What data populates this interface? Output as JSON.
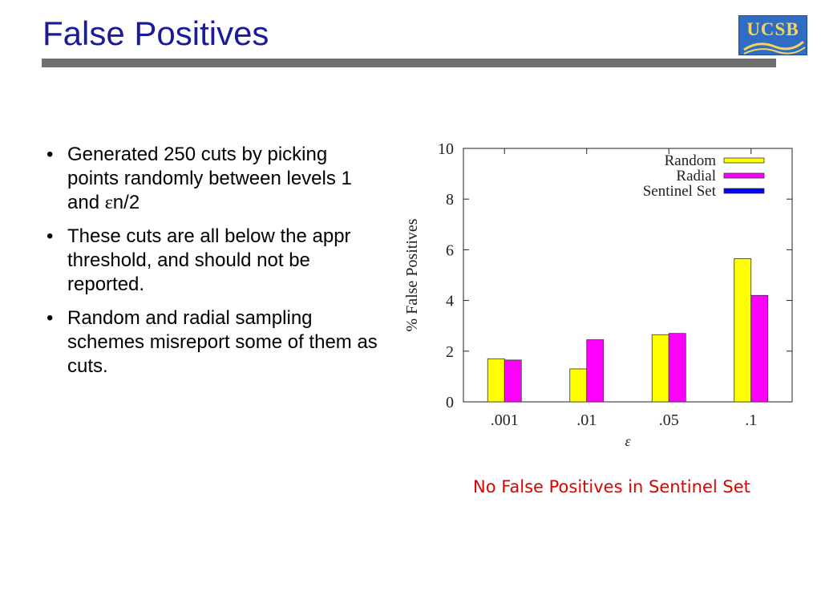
{
  "slide": {
    "title": "False Positives",
    "logo_text": "UCSB",
    "bullets": [
      {
        "pre": "Generated 250 cuts by picking points randomly between levels 1 and ",
        "eps": "ε",
        "post": "n/2"
      },
      {
        "pre": "These cuts are all below the appr threshold, and should not be reported.",
        "eps": "",
        "post": ""
      },
      {
        "pre": "Random and radial sampling schemes misreport some of them as cuts.",
        "eps": "",
        "post": ""
      }
    ],
    "note": "No False Positives in Sentinel Set"
  },
  "colors": {
    "title": "#1a1a9c",
    "note": "#e00000",
    "random": "#ffff00",
    "radial": "#ff00ff",
    "sentinel": "#0000ff"
  },
  "chart_data": {
    "type": "bar",
    "categories": [
      ".001",
      ".01",
      ".05",
      ".1"
    ],
    "series": [
      {
        "name": "Random",
        "values": [
          1.7,
          1.3,
          2.65,
          5.65
        ]
      },
      {
        "name": "Radial",
        "values": [
          1.65,
          2.45,
          2.7,
          4.2
        ]
      },
      {
        "name": "Sentinel Set",
        "values": [
          0,
          0,
          0,
          0
        ]
      }
    ],
    "title": "",
    "xlabel": "ε",
    "ylabel": "% False Positives",
    "ylim": [
      0,
      10
    ],
    "yticks": [
      0,
      2,
      4,
      6,
      8,
      10
    ],
    "grid": false,
    "legend": "top-right"
  }
}
